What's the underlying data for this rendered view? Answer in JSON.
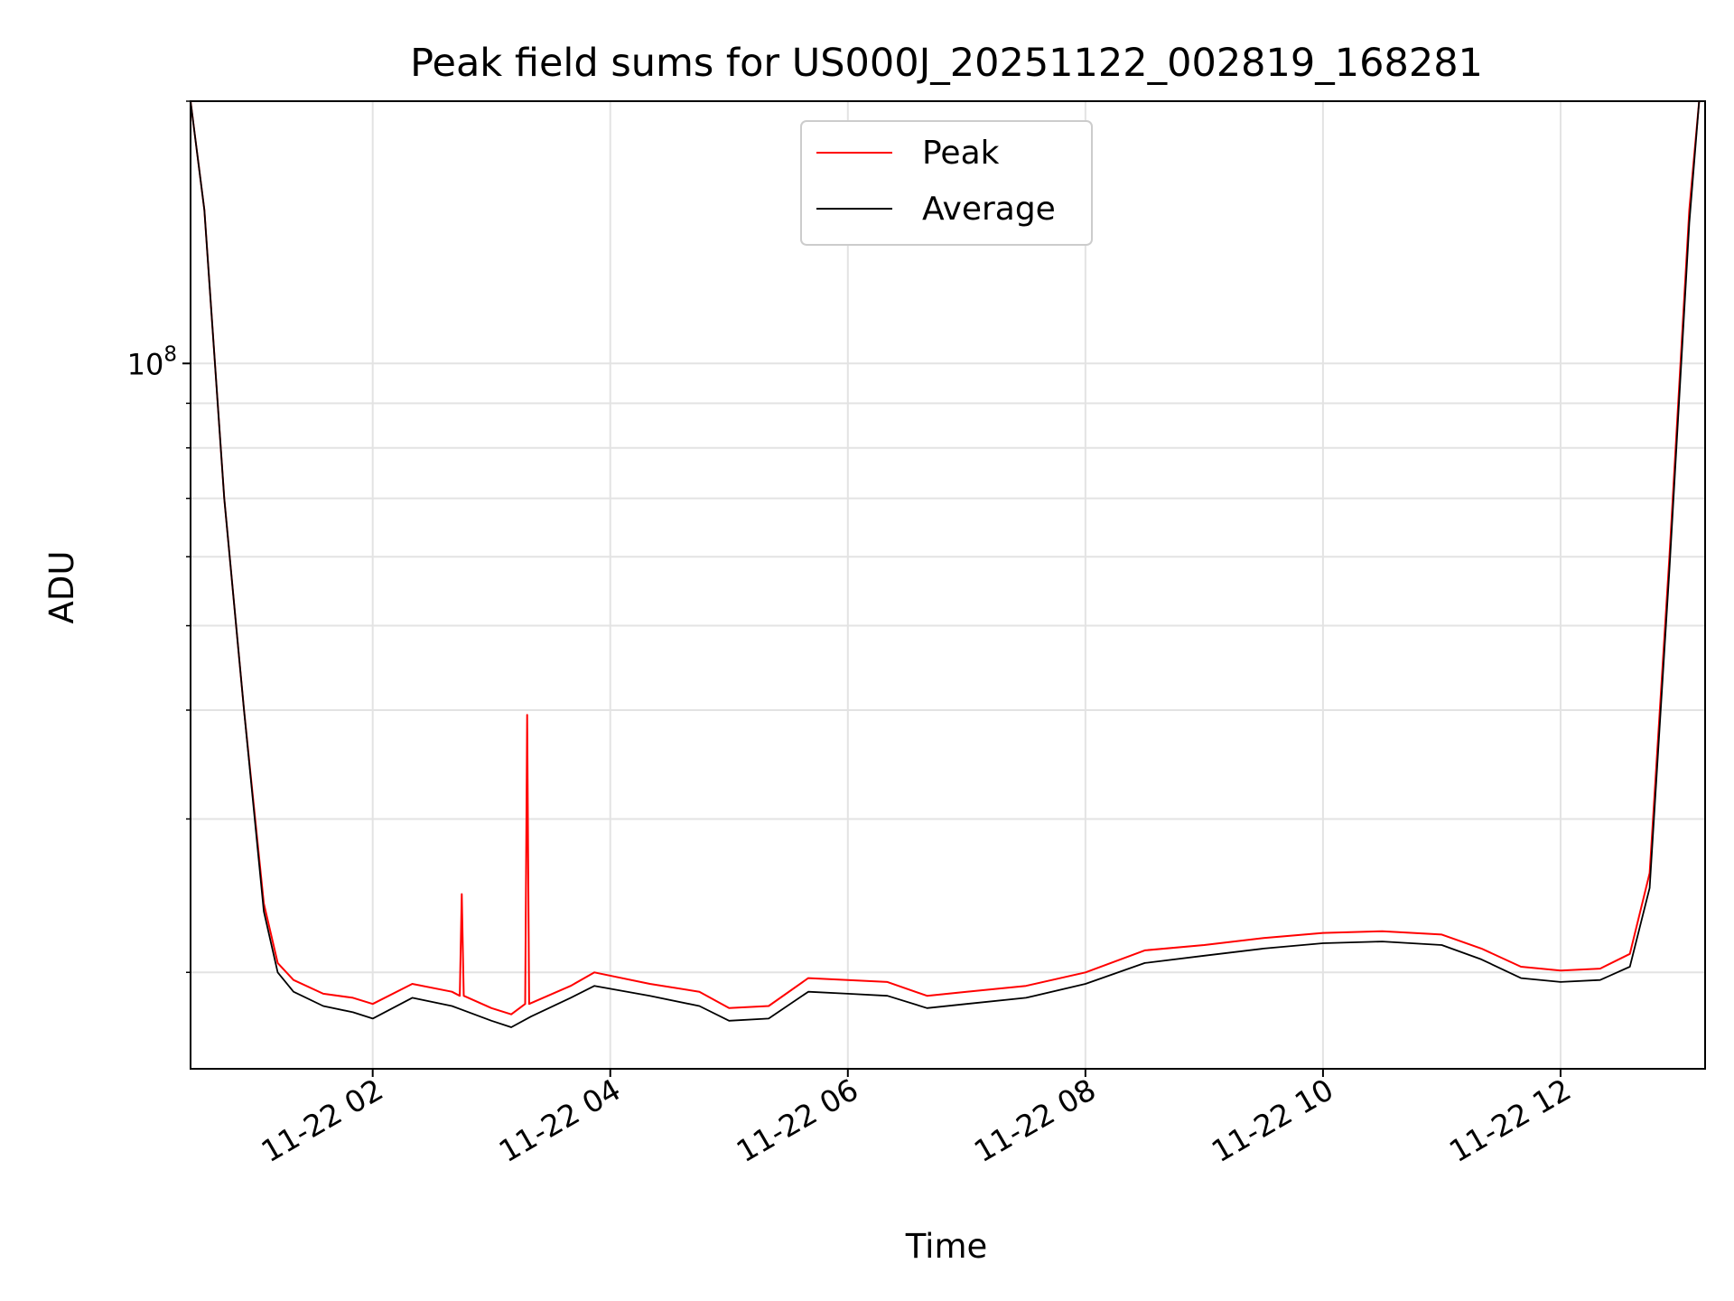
{
  "chart_data": {
    "type": "line",
    "title": "Peak field sums for US000J_20251122_002819_168281",
    "xlabel": "Time",
    "ylabel": "ADU",
    "y_scale": "log",
    "ylim": [
      15500000,
      200000000
    ],
    "xlim": [
      "2025-11-22 00:28",
      "2025-11-22 13:13"
    ],
    "x_ticks": [
      {
        "x": "2025-11-22 02:00",
        "label": "11-22 02"
      },
      {
        "x": "2025-11-22 04:00",
        "label": "11-22 04"
      },
      {
        "x": "2025-11-22 06:00",
        "label": "11-22 06"
      },
      {
        "x": "2025-11-22 08:00",
        "label": "11-22 08"
      },
      {
        "x": "2025-11-22 10:00",
        "label": "11-22 10"
      },
      {
        "x": "2025-11-22 12:00",
        "label": "11-22 12"
      }
    ],
    "y_major_ticks": [
      {
        "value": 100000000,
        "base": "10",
        "exponent": "8"
      }
    ],
    "y_minor_ticks": [
      20000000,
      30000000,
      40000000,
      50000000,
      60000000,
      70000000,
      80000000,
      90000000,
      200000000
    ],
    "grid": true,
    "legend_position": "upper center",
    "series": [
      {
        "name": "Peak",
        "color": "#ff0000",
        "x": [
          "2025-11-22 00:28",
          "2025-11-22 00:35",
          "2025-11-22 00:45",
          "2025-11-22 00:55",
          "2025-11-22 01:05",
          "2025-11-22 01:12",
          "2025-11-22 01:20",
          "2025-11-22 01:35",
          "2025-11-22 01:50",
          "2025-11-22 02:00",
          "2025-11-22 02:20",
          "2025-11-22 02:40",
          "2025-11-22 02:44",
          "2025-11-22 02:45",
          "2025-11-22 02:46",
          "2025-11-22 03:00",
          "2025-11-22 03:10",
          "2025-11-22 03:17",
          "2025-11-22 03:18",
          "2025-11-22 03:19",
          "2025-11-22 03:40",
          "2025-11-22 03:52",
          "2025-11-22 04:20",
          "2025-11-22 04:45",
          "2025-11-22 05:00",
          "2025-11-22 05:20",
          "2025-11-22 05:40",
          "2025-11-22 06:00",
          "2025-11-22 06:20",
          "2025-11-22 06:40",
          "2025-11-22 07:00",
          "2025-11-22 07:30",
          "2025-11-22 08:00",
          "2025-11-22 08:30",
          "2025-11-22 09:00",
          "2025-11-22 09:30",
          "2025-11-22 10:00",
          "2025-11-22 10:30",
          "2025-11-22 11:00",
          "2025-11-22 11:20",
          "2025-11-22 11:40",
          "2025-11-22 12:00",
          "2025-11-22 12:20",
          "2025-11-22 12:35",
          "2025-11-22 12:45",
          "2025-11-22 12:55",
          "2025-11-22 13:05",
          "2025-11-22 13:10",
          "2025-11-22 13:13"
        ],
        "y": [
          200000000,
          150000000,
          70000000,
          40000000,
          24000000,
          20500000,
          19600000,
          18900000,
          18700000,
          18400000,
          19400000,
          19000000,
          18800000,
          24600000,
          18800000,
          18200000,
          17900000,
          18400000,
          39500000,
          18400000,
          19300000,
          20000000,
          19400000,
          19000000,
          18200000,
          18300000,
          19700000,
          19600000,
          19500000,
          18800000,
          19000000,
          19300000,
          20000000,
          21200000,
          21500000,
          21900000,
          22200000,
          22300000,
          22100000,
          21300000,
          20300000,
          20100000,
          20200000,
          21000000,
          26000000,
          60000000,
          150000000,
          200000000,
          200000000
        ]
      },
      {
        "name": "Average",
        "color": "#000000",
        "x": [
          "2025-11-22 00:28",
          "2025-11-22 00:35",
          "2025-11-22 00:45",
          "2025-11-22 00:55",
          "2025-11-22 01:05",
          "2025-11-22 01:12",
          "2025-11-22 01:20",
          "2025-11-22 01:35",
          "2025-11-22 01:50",
          "2025-11-22 02:00",
          "2025-11-22 02:20",
          "2025-11-22 02:40",
          "2025-11-22 03:00",
          "2025-11-22 03:10",
          "2025-11-22 03:20",
          "2025-11-22 03:40",
          "2025-11-22 03:52",
          "2025-11-22 04:20",
          "2025-11-22 04:45",
          "2025-11-22 05:00",
          "2025-11-22 05:20",
          "2025-11-22 05:40",
          "2025-11-22 06:00",
          "2025-11-22 06:20",
          "2025-11-22 06:40",
          "2025-11-22 07:00",
          "2025-11-22 07:30",
          "2025-11-22 08:00",
          "2025-11-22 08:30",
          "2025-11-22 09:00",
          "2025-11-22 09:30",
          "2025-11-22 10:00",
          "2025-11-22 10:30",
          "2025-11-22 11:00",
          "2025-11-22 11:20",
          "2025-11-22 11:40",
          "2025-11-22 12:00",
          "2025-11-22 12:20",
          "2025-11-22 12:35",
          "2025-11-22 12:45",
          "2025-11-22 12:55",
          "2025-11-22 13:05",
          "2025-11-22 13:10",
          "2025-11-22 13:13"
        ],
        "y": [
          200000000,
          150000000,
          70000000,
          40000000,
          23500000,
          20000000,
          19000000,
          18300000,
          18000000,
          17700000,
          18700000,
          18300000,
          17600000,
          17300000,
          17800000,
          18700000,
          19300000,
          18800000,
          18300000,
          17600000,
          17700000,
          19000000,
          18900000,
          18800000,
          18200000,
          18400000,
          18700000,
          19400000,
          20500000,
          20900000,
          21300000,
          21600000,
          21700000,
          21500000,
          20700000,
          19700000,
          19500000,
          19600000,
          20300000,
          25000000,
          58000000,
          145000000,
          200000000,
          200000000
        ]
      }
    ]
  }
}
